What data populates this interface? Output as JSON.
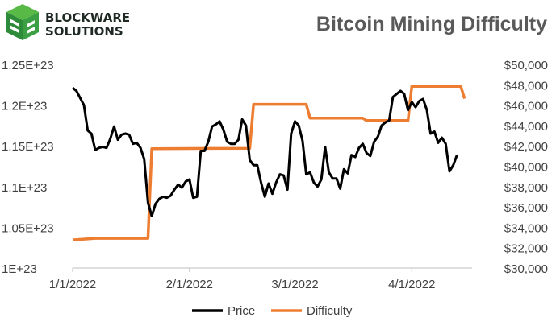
{
  "brand": {
    "line1": "BLOCKWARE",
    "line2": "SOLUTIONS",
    "logo_colors": [
      "#2e8b3a",
      "#58b947",
      "#1f2a24"
    ]
  },
  "colors": {
    "price": "#000000",
    "difficulty": "#ED7D31",
    "grid": "#d9d9d9",
    "axis": "#bfbfbf"
  },
  "chart_data": {
    "type": "line",
    "title": "Bitcoin Mining Difficulty",
    "x_range": [
      "2022-01-01",
      "2022-04-17"
    ],
    "x_ticks": [
      {
        "date": "2022-01-01",
        "label": "1/1/2022"
      },
      {
        "date": "2022-02-01",
        "label": "2/1/2022"
      },
      {
        "date": "2022-03-01",
        "label": "3/1/2022"
      },
      {
        "date": "2022-04-01",
        "label": "4/1/2022"
      }
    ],
    "y_left": {
      "min": 1e+23,
      "max": 1.25e+23,
      "ticks": [
        {
          "value": 1e+23,
          "label": "1E+23"
        },
        {
          "value": 1.05e+23,
          "label": "1.05E+23"
        },
        {
          "value": 1.1e+23,
          "label": "1.1E+23"
        },
        {
          "value": 1.15e+23,
          "label": "1.15E+23"
        },
        {
          "value": 1.2e+23,
          "label": "1.2E+23"
        },
        {
          "value": 1.25e+23,
          "label": "1.25E+23"
        }
      ]
    },
    "y_right": {
      "min": 30000,
      "max": 50000,
      "ticks": [
        {
          "value": 30000,
          "label": "$30,000"
        },
        {
          "value": 32000,
          "label": "$32,000"
        },
        {
          "value": 34000,
          "label": "$34,000"
        },
        {
          "value": 36000,
          "label": "$36,000"
        },
        {
          "value": 38000,
          "label": "$38,000"
        },
        {
          "value": 40000,
          "label": "$40,000"
        },
        {
          "value": 42000,
          "label": "$42,000"
        },
        {
          "value": 44000,
          "label": "$44,000"
        },
        {
          "value": 46000,
          "label": "$46,000"
        },
        {
          "value": 48000,
          "label": "$48,000"
        },
        {
          "value": 50000,
          "label": "$50,000"
        }
      ]
    },
    "legend_position": "bottom",
    "series": [
      {
        "name": "Price",
        "axis": "right",
        "points": [
          [
            "2022-01-01",
            47700
          ],
          [
            "2022-01-02",
            47400
          ],
          [
            "2022-01-03",
            46700
          ],
          [
            "2022-01-04",
            46000
          ],
          [
            "2022-01-05",
            43500
          ],
          [
            "2022-01-06",
            43200
          ],
          [
            "2022-01-07",
            41600
          ],
          [
            "2022-01-08",
            41800
          ],
          [
            "2022-01-09",
            41900
          ],
          [
            "2022-01-10",
            41800
          ],
          [
            "2022-01-11",
            42700
          ],
          [
            "2022-01-12",
            43900
          ],
          [
            "2022-01-13",
            42600
          ],
          [
            "2022-01-14",
            43100
          ],
          [
            "2022-01-15",
            43200
          ],
          [
            "2022-01-16",
            43100
          ],
          [
            "2022-01-17",
            42200
          ],
          [
            "2022-01-18",
            42300
          ],
          [
            "2022-01-19",
            41800
          ],
          [
            "2022-01-20",
            40700
          ],
          [
            "2022-01-21",
            36400
          ],
          [
            "2022-01-22",
            35100
          ],
          [
            "2022-01-23",
            36300
          ],
          [
            "2022-01-24",
            36800
          ],
          [
            "2022-01-25",
            37000
          ],
          [
            "2022-01-26",
            36900
          ],
          [
            "2022-01-27",
            37100
          ],
          [
            "2022-01-28",
            37700
          ],
          [
            "2022-01-29",
            38200
          ],
          [
            "2022-01-30",
            37900
          ],
          [
            "2022-01-31",
            38500
          ],
          [
            "2022-02-01",
            38700
          ],
          [
            "2022-02-02",
            36900
          ],
          [
            "2022-02-03",
            37000
          ],
          [
            "2022-02-04",
            41500
          ],
          [
            "2022-02-05",
            41500
          ],
          [
            "2022-02-06",
            42400
          ],
          [
            "2022-02-07",
            43900
          ],
          [
            "2022-02-08",
            44100
          ],
          [
            "2022-02-09",
            44400
          ],
          [
            "2022-02-10",
            43600
          ],
          [
            "2022-02-11",
            42400
          ],
          [
            "2022-02-12",
            42200
          ],
          [
            "2022-02-13",
            42200
          ],
          [
            "2022-02-14",
            42600
          ],
          [
            "2022-02-15",
            44600
          ],
          [
            "2022-02-16",
            44000
          ],
          [
            "2022-02-17",
            40600
          ],
          [
            "2022-02-18",
            40100
          ],
          [
            "2022-02-19",
            40100
          ],
          [
            "2022-02-20",
            38400
          ],
          [
            "2022-02-21",
            37000
          ],
          [
            "2022-02-22",
            38300
          ],
          [
            "2022-02-23",
            37300
          ],
          [
            "2022-02-24",
            38400
          ],
          [
            "2022-02-25",
            39200
          ],
          [
            "2022-02-26",
            39100
          ],
          [
            "2022-02-27",
            37700
          ],
          [
            "2022-02-28",
            43200
          ],
          [
            "2022-03-01",
            44400
          ],
          [
            "2022-03-02",
            44000
          ],
          [
            "2022-03-03",
            42500
          ],
          [
            "2022-03-04",
            39200
          ],
          [
            "2022-03-05",
            39400
          ],
          [
            "2022-03-06",
            38400
          ],
          [
            "2022-03-07",
            38000
          ],
          [
            "2022-03-08",
            38700
          ],
          [
            "2022-03-09",
            41900
          ],
          [
            "2022-03-10",
            39400
          ],
          [
            "2022-03-11",
            38800
          ],
          [
            "2022-03-12",
            38800
          ],
          [
            "2022-03-13",
            37800
          ],
          [
            "2022-03-14",
            39700
          ],
          [
            "2022-03-15",
            39300
          ],
          [
            "2022-03-16",
            41100
          ],
          [
            "2022-03-17",
            40900
          ],
          [
            "2022-03-18",
            41800
          ],
          [
            "2022-03-19",
            42200
          ],
          [
            "2022-03-20",
            41300
          ],
          [
            "2022-03-21",
            41000
          ],
          [
            "2022-03-22",
            42400
          ],
          [
            "2022-03-23",
            42900
          ],
          [
            "2022-03-24",
            44000
          ],
          [
            "2022-03-25",
            44300
          ],
          [
            "2022-03-26",
            44500
          ],
          [
            "2022-03-27",
            46800
          ],
          [
            "2022-03-28",
            47100
          ],
          [
            "2022-03-29",
            47400
          ],
          [
            "2022-03-30",
            47100
          ],
          [
            "2022-03-31",
            45500
          ],
          [
            "2022-04-01",
            46300
          ],
          [
            "2022-04-02",
            45800
          ],
          [
            "2022-04-03",
            46400
          ],
          [
            "2022-04-04",
            46600
          ],
          [
            "2022-04-05",
            45500
          ],
          [
            "2022-04-06",
            43200
          ],
          [
            "2022-04-07",
            43400
          ],
          [
            "2022-04-08",
            42300
          ],
          [
            "2022-04-09",
            42800
          ],
          [
            "2022-04-10",
            42200
          ],
          [
            "2022-04-11",
            39500
          ],
          [
            "2022-04-12",
            40100
          ],
          [
            "2022-04-13",
            41100
          ]
        ]
      },
      {
        "name": "Difficulty",
        "axis": "left",
        "steps": [
          [
            "2022-01-01",
            1.0345e+23
          ],
          [
            "2022-01-07",
            1.0365e+23
          ],
          [
            "2022-01-21",
            1.0365e+23
          ],
          [
            "2022-01-22",
            1.1465e+23
          ],
          [
            "2022-02-17",
            1.147e+23
          ],
          [
            "2022-02-18",
            1.201e+23
          ],
          [
            "2022-03-04",
            1.201e+23
          ],
          [
            "2022-03-05",
            1.184e+23
          ],
          [
            "2022-03-19",
            1.184e+23
          ],
          [
            "2022-03-20",
            1.181e+23
          ],
          [
            "2022-03-31",
            1.181e+23
          ],
          [
            "2022-04-01",
            1.223e+23
          ],
          [
            "2022-04-14",
            1.223e+23
          ],
          [
            "2022-04-15",
            1.208e+23
          ]
        ]
      }
    ]
  }
}
